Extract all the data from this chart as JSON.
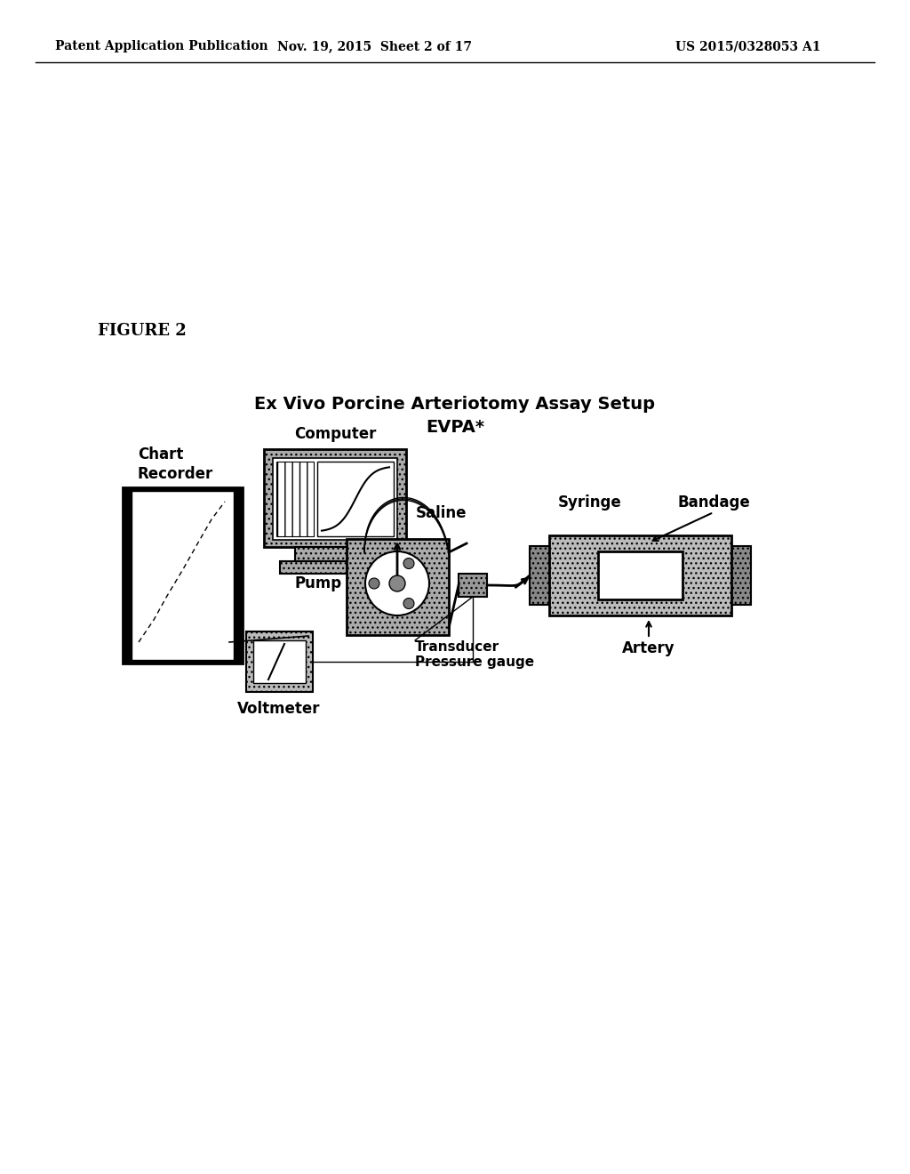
{
  "title_line1": "Ex Vivo Porcine Arteriotomy Assay Setup",
  "title_line2": "EVPA*",
  "figure_label": "FIGURE 2",
  "header_left": "Patent Application Publication",
  "header_mid": "Nov. 19, 2015  Sheet 2 of 17",
  "header_right": "US 2015/0328053 A1",
  "labels": {
    "chart_recorder": "Chart\nRecorder",
    "computer": "Computer",
    "saline": "Saline",
    "pump": "Pump",
    "syringe": "Syringe",
    "bandage": "Bandage",
    "artery": "Artery",
    "voltmeter": "Voltmeter",
    "transducer": "Transducer\nPressure gauge"
  },
  "bg_color": "#ffffff"
}
